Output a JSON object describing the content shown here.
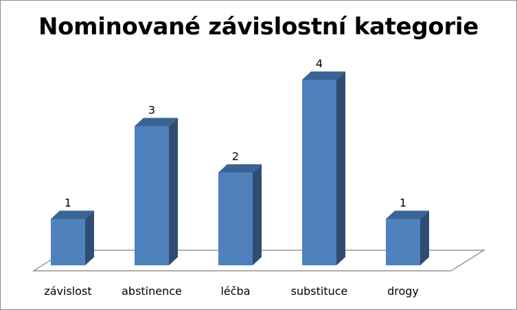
{
  "chart_data": {
    "type": "bar",
    "title": "Nominované závislostní kategorie",
    "categories": [
      "závislost",
      "abstinence",
      "léčba",
      "substituce",
      "drogy"
    ],
    "values": [
      1,
      3,
      2,
      4,
      1
    ],
    "data_labels": [
      "1",
      "3",
      "2",
      "4",
      "1"
    ],
    "xlabel": "",
    "ylabel": "",
    "ylim": [
      0,
      4
    ],
    "grid": false,
    "legend": "none",
    "three_d": true,
    "colors": {
      "bar_front": "#4f81bd",
      "bar_side": "#2f4d73",
      "bar_top": "#3b6496",
      "floor_line": "#7f7f7f"
    }
  }
}
